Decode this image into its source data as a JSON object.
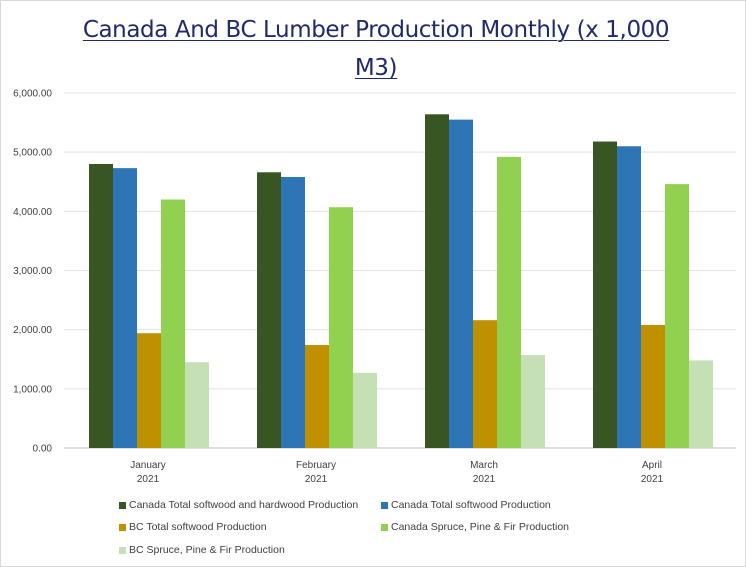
{
  "chart_data": {
    "type": "bar",
    "title": "Canada And BC Lumber Production Monthly (x 1,000 M3)",
    "title_lines": [
      "Canada And BC Lumber Production Monthly (x 1,000",
      "M3)"
    ],
    "categories": [
      {
        "month": "January",
        "year": "2021"
      },
      {
        "month": "February",
        "year": "2021"
      },
      {
        "month": "March",
        "year": "2021"
      },
      {
        "month": "April",
        "year": "2021"
      }
    ],
    "series": [
      {
        "name": "Canada Total softwood and hardwood Production",
        "color": "#375623",
        "values": [
          4800,
          4660,
          5640,
          5180
        ]
      },
      {
        "name": "Canada Total softwood Production",
        "color": "#2e75b6",
        "values": [
          4730,
          4580,
          5550,
          5100
        ]
      },
      {
        "name": "BC Total softwood Production",
        "color": "#bf9000",
        "values": [
          1940,
          1740,
          2160,
          2080
        ]
      },
      {
        "name": "Canada Spruce, Pine & Fir Production",
        "color": "#92d050",
        "values": [
          4200,
          4070,
          4920,
          4460
        ]
      },
      {
        "name": "BC Spruce, Pine & Fir Production",
        "color": "#c5e0b4",
        "values": [
          1450,
          1270,
          1570,
          1480
        ]
      }
    ],
    "y_ticks": [
      "0.00",
      "1,000.00",
      "2,000.00",
      "3,000.00",
      "4,000.00",
      "5,000.00",
      "6,000.00"
    ],
    "ylim": [
      0,
      6000
    ],
    "xlabel": "",
    "ylabel": "",
    "grid": true,
    "legend_position": "bottom"
  }
}
